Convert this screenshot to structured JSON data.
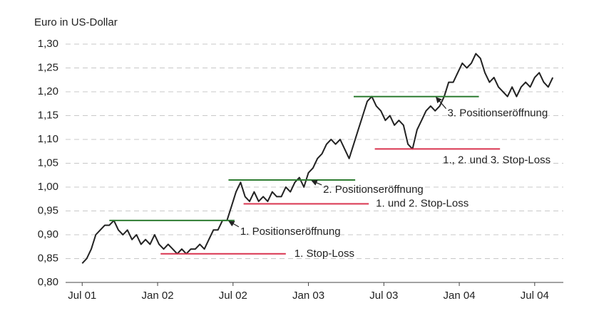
{
  "chart_data": {
    "type": "line",
    "y_label": "Euro in US-Dollar",
    "xlim": [
      2001.39,
      2004.69
    ],
    "xticks": [
      {
        "value": 2001.5,
        "label": "Jul 01"
      },
      {
        "value": 2002.0,
        "label": "Jan 02"
      },
      {
        "value": 2002.5,
        "label": "Jul 02"
      },
      {
        "value": 2003.0,
        "label": "Jan 03"
      },
      {
        "value": 2003.5,
        "label": "Jul 03"
      },
      {
        "value": 2004.0,
        "label": "Jan 04"
      },
      {
        "value": 2004.5,
        "label": "Jul 04"
      }
    ],
    "ylim": [
      0.8,
      1.3
    ],
    "yticks": [
      {
        "value": 0.8,
        "label": "0,80"
      },
      {
        "value": 0.85,
        "label": "0,85"
      },
      {
        "value": 0.9,
        "label": "0,90"
      },
      {
        "value": 0.95,
        "label": "0,95"
      },
      {
        "value": 1.0,
        "label": "1,00"
      },
      {
        "value": 1.05,
        "label": "1,05"
      },
      {
        "value": 1.1,
        "label": "1,10"
      },
      {
        "value": 1.15,
        "label": "1,15"
      },
      {
        "value": 1.2,
        "label": "1,20"
      },
      {
        "value": 1.25,
        "label": "1,25"
      },
      {
        "value": 1.3,
        "label": "1,30"
      }
    ],
    "grid": true,
    "series": [
      {
        "color": "#222222",
        "x": [
          2001.5,
          2001.53,
          2001.56,
          2001.59,
          2001.62,
          2001.65,
          2001.68,
          2001.71,
          2001.74,
          2001.77,
          2001.8,
          2001.83,
          2001.86,
          2001.89,
          2001.92,
          2001.95,
          2001.98,
          2002.01,
          2002.04,
          2002.07,
          2002.1,
          2002.13,
          2002.16,
          2002.19,
          2002.22,
          2002.25,
          2002.28,
          2002.31,
          2002.34,
          2002.37,
          2002.4,
          2002.43,
          2002.46,
          2002.49,
          2002.52,
          2002.55,
          2002.58,
          2002.61,
          2002.64,
          2002.67,
          2002.7,
          2002.73,
          2002.76,
          2002.79,
          2002.82,
          2002.85,
          2002.88,
          2002.91,
          2002.94,
          2002.97,
          2003.0,
          2003.03,
          2003.06,
          2003.09,
          2003.12,
          2003.15,
          2003.18,
          2003.21,
          2003.24,
          2003.27,
          2003.3,
          2003.33,
          2003.36,
          2003.39,
          2003.42,
          2003.45,
          2003.48,
          2003.51,
          2003.54,
          2003.57,
          2003.6,
          2003.63,
          2003.66,
          2003.69,
          2003.72,
          2003.75,
          2003.78,
          2003.81,
          2003.84,
          2003.87,
          2003.9,
          2003.93,
          2003.96,
          2003.99,
          2004.02,
          2004.05,
          2004.08,
          2004.11,
          2004.14,
          2004.17,
          2004.2,
          2004.23,
          2004.26,
          2004.29,
          2004.32,
          2004.35,
          2004.38,
          2004.41,
          2004.44,
          2004.47,
          2004.5,
          2004.53,
          2004.56,
          2004.59,
          2004.62
        ],
        "values": [
          0.84,
          0.85,
          0.87,
          0.9,
          0.91,
          0.92,
          0.92,
          0.93,
          0.91,
          0.9,
          0.91,
          0.89,
          0.9,
          0.88,
          0.89,
          0.88,
          0.9,
          0.88,
          0.87,
          0.88,
          0.87,
          0.86,
          0.87,
          0.86,
          0.87,
          0.87,
          0.88,
          0.87,
          0.89,
          0.91,
          0.91,
          0.93,
          0.93,
          0.96,
          0.99,
          1.01,
          0.98,
          0.97,
          0.99,
          0.97,
          0.98,
          0.97,
          0.99,
          0.98,
          0.98,
          1.0,
          0.99,
          1.01,
          1.02,
          1.0,
          1.03,
          1.04,
          1.06,
          1.07,
          1.09,
          1.1,
          1.09,
          1.1,
          1.08,
          1.06,
          1.09,
          1.12,
          1.15,
          1.18,
          1.19,
          1.17,
          1.16,
          1.14,
          1.15,
          1.13,
          1.14,
          1.13,
          1.09,
          1.08,
          1.12,
          1.14,
          1.16,
          1.17,
          1.16,
          1.17,
          1.19,
          1.22,
          1.22,
          1.24,
          1.26,
          1.25,
          1.26,
          1.28,
          1.27,
          1.24,
          1.22,
          1.23,
          1.21,
          1.2,
          1.19,
          1.21,
          1.19,
          1.21,
          1.22,
          1.21,
          1.23,
          1.24,
          1.22,
          1.21,
          1.23
        ]
      }
    ],
    "levels": [
      {
        "label": "1. Positionseröffnung",
        "value": 0.93,
        "x": [
          2001.68,
          2002.51
        ],
        "color": "#2e7d32"
      },
      {
        "label": "1. Stop-Loss",
        "value": 0.86,
        "x": [
          2002.02,
          2002.85
        ],
        "color": "#d9344f"
      },
      {
        "label": "2. Positionseröffnung",
        "value": 1.015,
        "x": [
          2002.47,
          2003.31
        ],
        "color": "#2e7d32"
      },
      {
        "label": "1. und 2. Stop-Loss",
        "value": 0.965,
        "x": [
          2002.57,
          2003.4
        ],
        "color": "#d9344f"
      },
      {
        "label": "3. Positionseröffnung",
        "value": 1.19,
        "x": [
          2003.3,
          2004.13
        ],
        "color": "#2e7d32"
      },
      {
        "label": "1., 2. und 3. Stop-Loss",
        "value": 1.08,
        "x": [
          2003.44,
          2004.27
        ],
        "color": "#d9344f"
      }
    ]
  }
}
